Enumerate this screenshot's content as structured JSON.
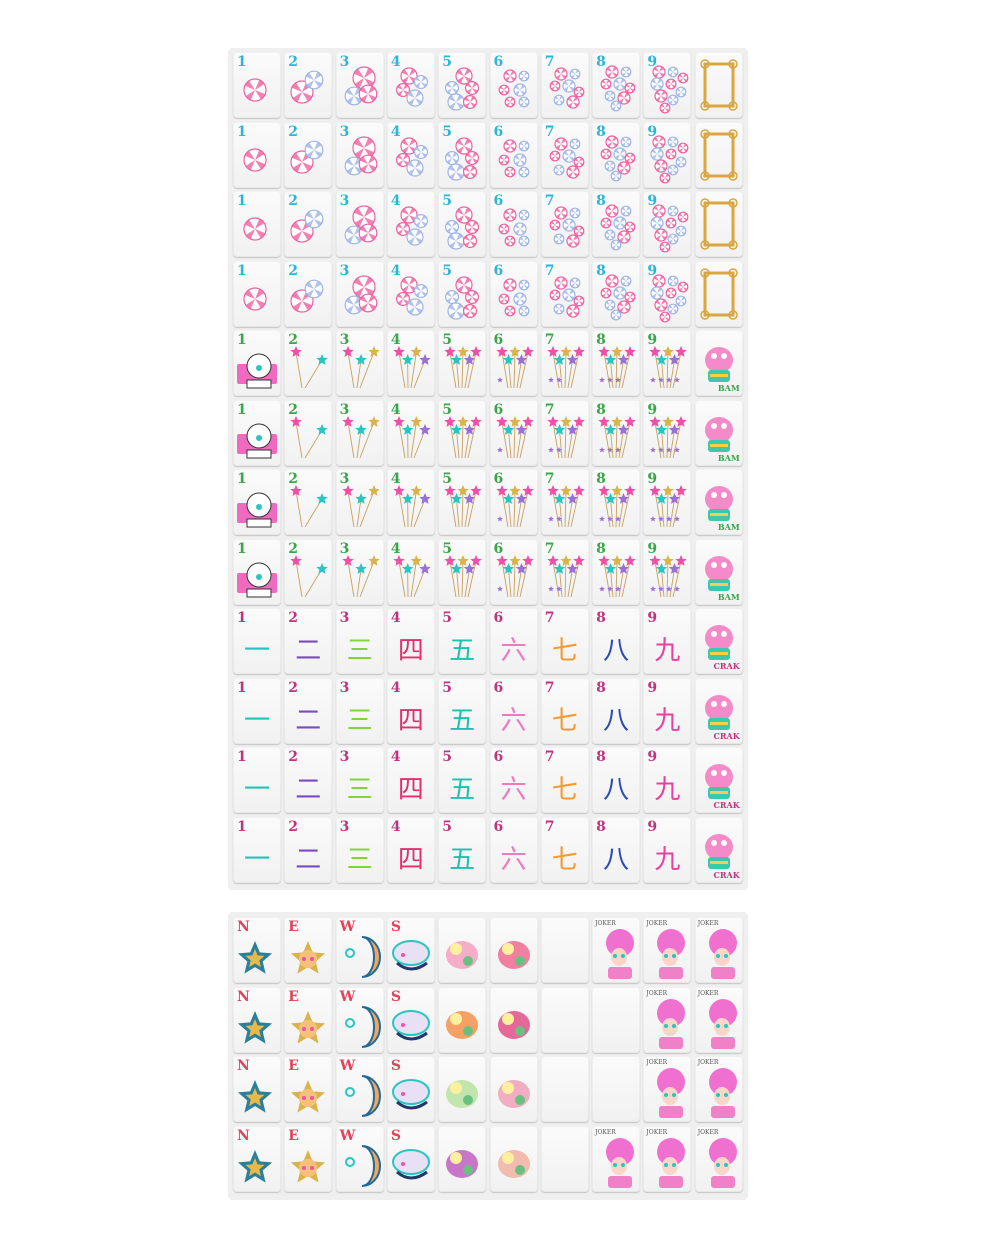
{
  "colors": {
    "dots": "#2bb6d9",
    "bams": "#3aa64a",
    "craks": "#c0347e",
    "winds": "#e0445a",
    "candy_pink": "#f0609e",
    "candy_blue": "#9fb4e6",
    "frame": "#d9a640",
    "star_pink": "#f04fa8",
    "star_teal": "#27c6c2"
  },
  "top_block": {
    "rows": [
      {
        "suit": "dots",
        "numbers": [
          "1",
          "2",
          "3",
          "4",
          "5",
          "6",
          "7",
          "8",
          "9"
        ],
        "honor": "frame-icon"
      },
      {
        "suit": "dots",
        "numbers": [
          "1",
          "2",
          "3",
          "4",
          "5",
          "6",
          "7",
          "8",
          "9"
        ],
        "honor": "frame-icon"
      },
      {
        "suit": "dots",
        "numbers": [
          "1",
          "2",
          "3",
          "4",
          "5",
          "6",
          "7",
          "8",
          "9"
        ],
        "honor": "frame-icon"
      },
      {
        "suit": "dots",
        "numbers": [
          "1",
          "2",
          "3",
          "4",
          "5",
          "6",
          "7",
          "8",
          "9"
        ],
        "honor": "frame-icon"
      },
      {
        "suit": "bams",
        "numbers": [
          "1",
          "2",
          "3",
          "4",
          "5",
          "6",
          "7",
          "8",
          "9"
        ],
        "honor": "dragon-icon",
        "honor_label": "BAM"
      },
      {
        "suit": "bams",
        "numbers": [
          "1",
          "2",
          "3",
          "4",
          "5",
          "6",
          "7",
          "8",
          "9"
        ],
        "honor": "dragon-icon",
        "honor_label": "BAM"
      },
      {
        "suit": "bams",
        "numbers": [
          "1",
          "2",
          "3",
          "4",
          "5",
          "6",
          "7",
          "8",
          "9"
        ],
        "honor": "dragon-icon",
        "honor_label": "BAM"
      },
      {
        "suit": "bams",
        "numbers": [
          "1",
          "2",
          "3",
          "4",
          "5",
          "6",
          "7",
          "8",
          "9"
        ],
        "honor": "dragon-icon",
        "honor_label": "BAM"
      },
      {
        "suit": "craks",
        "numbers": [
          "1",
          "2",
          "3",
          "4",
          "5",
          "6",
          "7",
          "8",
          "9"
        ],
        "honor": "dragon-icon",
        "honor_label": "CRAK"
      },
      {
        "suit": "craks",
        "numbers": [
          "1",
          "2",
          "3",
          "4",
          "5",
          "6",
          "7",
          "8",
          "9"
        ],
        "honor": "dragon-icon",
        "honor_label": "CRAK"
      },
      {
        "suit": "craks",
        "numbers": [
          "1",
          "2",
          "3",
          "4",
          "5",
          "6",
          "7",
          "8",
          "9"
        ],
        "honor": "dragon-icon",
        "honor_label": "CRAK"
      },
      {
        "suit": "craks",
        "numbers": [
          "1",
          "2",
          "3",
          "4",
          "5",
          "6",
          "7",
          "8",
          "9"
        ],
        "honor": "dragon-icon",
        "honor_label": "CRAK"
      }
    ],
    "crak_characters": [
      "一",
      "二",
      "三",
      "四",
      "五",
      "六",
      "七",
      "八",
      "九"
    ],
    "crak_colors": [
      "#22c3b8",
      "#7a4bc0",
      "#7fd63a",
      "#e0306e",
      "#1fc0b0",
      "#f07ac0",
      "#f59a32",
      "#2a4cb0",
      "#e83fa0"
    ]
  },
  "bottom_block": {
    "winds": [
      "N",
      "E",
      "W",
      "S"
    ],
    "joker_label": "JOKER",
    "rows": [
      [
        "wind",
        "wind",
        "wind",
        "wind",
        "flower",
        "flower",
        "blank",
        "joker",
        "joker",
        "joker"
      ],
      [
        "wind",
        "wind",
        "wind",
        "wind",
        "flower",
        "flower",
        "blank",
        "blank",
        "joker",
        "joker"
      ],
      [
        "wind",
        "wind",
        "wind",
        "wind",
        "flower",
        "flower",
        "blank",
        "blank",
        "joker",
        "joker"
      ],
      [
        "wind",
        "wind",
        "wind",
        "wind",
        "flower",
        "flower",
        "blank",
        "joker",
        "joker",
        "joker"
      ]
    ],
    "wind_icons": [
      "star-icon",
      "sun-icon",
      "moon-icon",
      "cloud-icon"
    ]
  }
}
